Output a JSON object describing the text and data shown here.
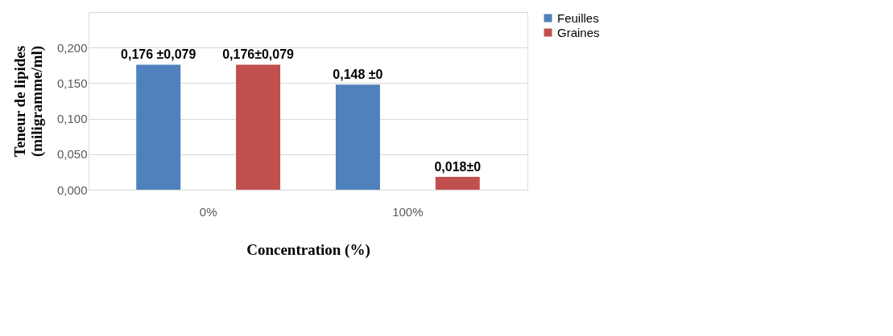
{
  "chart_data": {
    "type": "bar",
    "xlabel": "Concentration (%)",
    "ylabel": "Teneur de lipides\n(miligramme/ml)",
    "categories": [
      "0%",
      "100%"
    ],
    "series": [
      {
        "name": "Feuilles",
        "color": "#4f81bd",
        "values": [
          0.176,
          0.148
        ],
        "value_labels": [
          "0,176 ±0,079",
          "0,148  ±0"
        ]
      },
      {
        "name": "Graines",
        "color": "#c0504d",
        "values": [
          0.176,
          0.018
        ],
        "value_labels": [
          "0,176±0,079",
          "0,018±0"
        ]
      }
    ],
    "ylim": [
      0,
      0.25
    ],
    "yticks": [
      {
        "value": 0,
        "label": "0,000"
      },
      {
        "value": 0.05,
        "label": "0,050"
      },
      {
        "value": 0.1,
        "label": "0,100"
      },
      {
        "value": 0.15,
        "label": "0,150"
      },
      {
        "value": 0.2,
        "label": "0,200"
      },
      {
        "value": 0.25,
        "label": null
      }
    ],
    "grid": "y",
    "legend": "right"
  }
}
